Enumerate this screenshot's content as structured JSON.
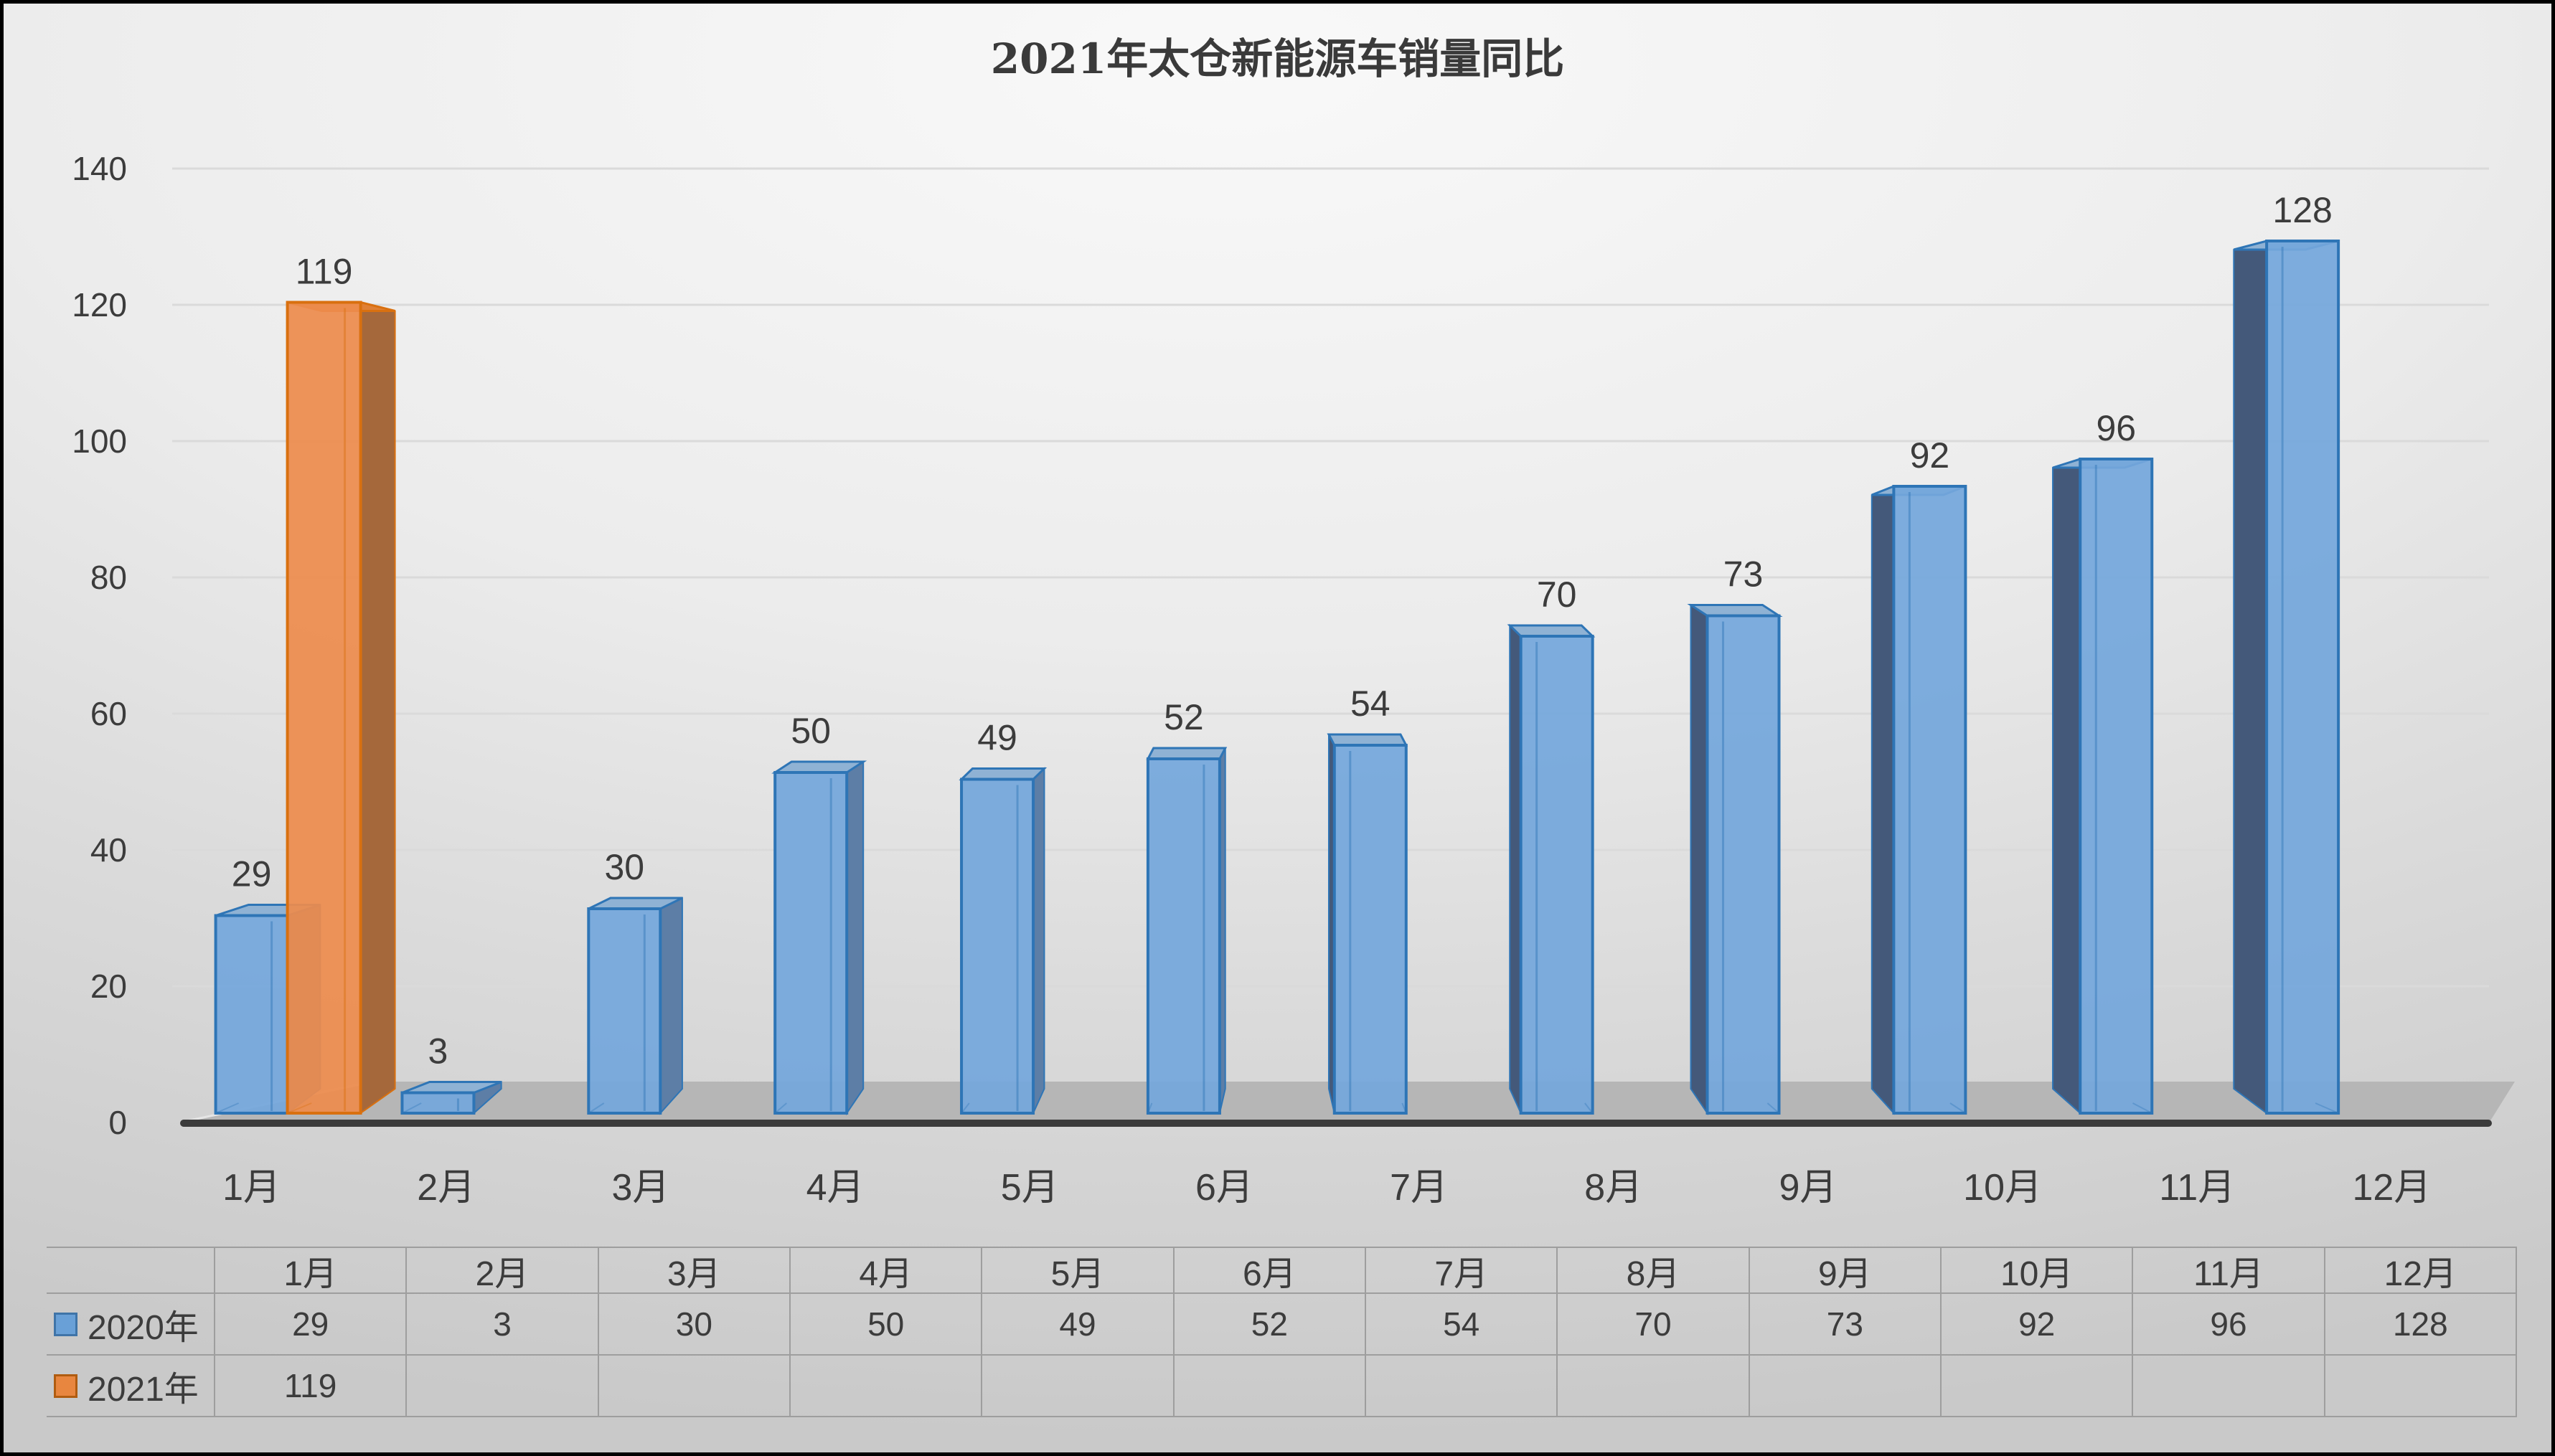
{
  "chart_data": {
    "type": "bar",
    "title": "2021年太仓新能源车销量同比",
    "categories": [
      "1月",
      "2月",
      "3月",
      "4月",
      "5月",
      "6月",
      "7月",
      "8月",
      "9月",
      "10月",
      "11月",
      "12月"
    ],
    "series": [
      {
        "name": "2020年",
        "values": [
          29,
          3,
          30,
          50,
          49,
          52,
          54,
          70,
          73,
          92,
          96,
          128
        ],
        "color": "#74a7dc",
        "border_color": "#2e75b6",
        "side_color_right": "#5d7ea6",
        "side_color_left": "#44597a",
        "top_color": "#8fb2d4"
      },
      {
        "name": "2021年",
        "values": [
          119,
          null,
          null,
          null,
          null,
          null,
          null,
          null,
          null,
          null,
          null,
          null
        ],
        "color": "#ed8c4d",
        "border_color": "#d9700f",
        "side_color_right": "#a5683b",
        "side_color_left": "#a5683b",
        "top_color": "#e08034"
      }
    ],
    "ylabel": "",
    "xlabel": "",
    "ylim": [
      0,
      140
    ],
    "yticks": [
      0,
      20,
      40,
      60,
      80,
      100,
      120,
      140
    ],
    "grid": true,
    "style": "3d",
    "legend_position": "table-left"
  },
  "table": {
    "corner_label": "",
    "headers": [
      "1月",
      "2月",
      "3月",
      "4月",
      "5月",
      "6月",
      "7月",
      "8月",
      "9月",
      "10月",
      "11月",
      "12月"
    ],
    "rows": [
      {
        "label": "2020年",
        "swatch_fill": "#69a0d7",
        "swatch_border": "#3f74a8",
        "values": [
          "29",
          "3",
          "30",
          "50",
          "49",
          "52",
          "54",
          "70",
          "73",
          "92",
          "96",
          "128"
        ]
      },
      {
        "label": "2021年",
        "swatch_fill": "#e8863f",
        "swatch_border": "#b05c10",
        "values": [
          "119",
          "",
          "",
          "",
          "",
          "",
          "",
          "",
          "",
          "",
          "",
          ""
        ]
      }
    ]
  },
  "colors": {
    "text": "#3c3c3c",
    "gridline": "#dadada",
    "axis_line": "#3b3b3b",
    "floor": "#b6b6b6",
    "floor_edge_highlight": "#e5e5e5",
    "table_border": "#9e9e9e",
    "blue_front": "#74a7dc",
    "blue_edge": "#2e75b6",
    "orange_front": "#ed8c4d",
    "orange_edge": "#d9700f"
  }
}
